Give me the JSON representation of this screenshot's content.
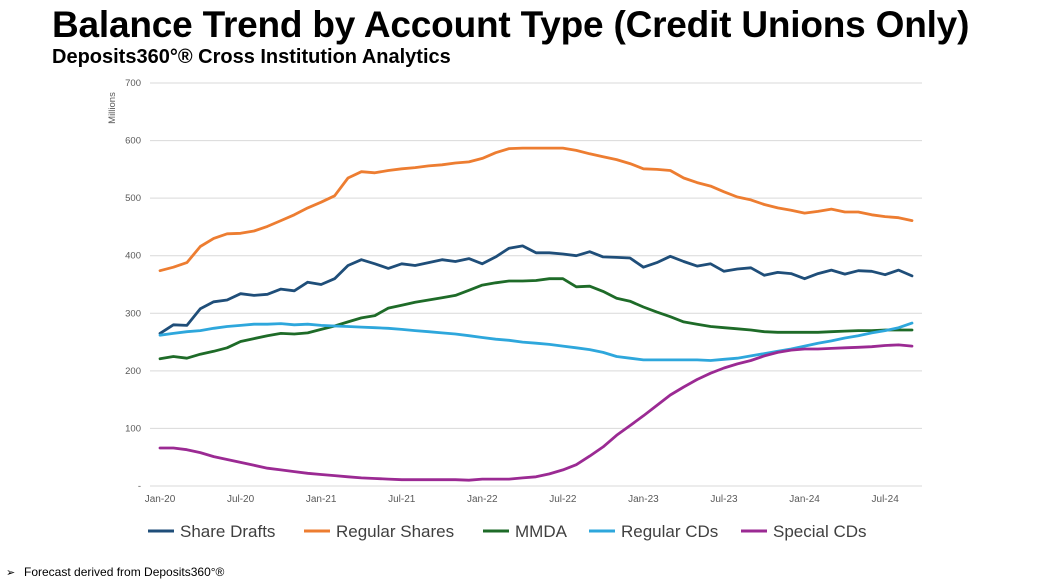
{
  "title": "Balance Trend by Account Type (Credit Unions Only)",
  "subtitle": "Deposits360°® Cross Institution Analytics",
  "footnote": "Forecast derived from Deposits360°®",
  "footnote_marker": "➢",
  "chart_data": {
    "type": "line",
    "ylabel": "Millions",
    "ylim": [
      0,
      700
    ],
    "yticks": [
      {
        "value": 0,
        "label": "-"
      },
      {
        "value": 100,
        "label": "100"
      },
      {
        "value": 200,
        "label": "200"
      },
      {
        "value": 300,
        "label": "300"
      },
      {
        "value": 400,
        "label": "400"
      },
      {
        "value": 500,
        "label": "500"
      },
      {
        "value": 600,
        "label": "600"
      },
      {
        "value": 700,
        "label": "700"
      }
    ],
    "xticks": [
      {
        "index": 0,
        "label": "Jan-20"
      },
      {
        "index": 6,
        "label": "Jul-20"
      },
      {
        "index": 12,
        "label": "Jan-21"
      },
      {
        "index": 18,
        "label": "Jul-21"
      },
      {
        "index": 24,
        "label": "Jan-22"
      },
      {
        "index": 30,
        "label": "Jul-22"
      },
      {
        "index": 36,
        "label": "Jan-23"
      },
      {
        "index": 42,
        "label": "Jul-23"
      },
      {
        "index": 48,
        "label": "Jan-24"
      },
      {
        "index": 54,
        "label": "Jul-24"
      }
    ],
    "x_count": 57,
    "grid": true,
    "legend_position": "bottom",
    "series": [
      {
        "name": "Share Drafts",
        "color": "#1f4e79",
        "values": [
          265,
          280,
          279,
          308,
          320,
          323,
          334,
          331,
          333,
          342,
          339,
          354,
          350,
          360,
          383,
          393,
          386,
          378,
          386,
          383,
          388,
          393,
          390,
          395,
          386,
          398,
          413,
          417,
          405,
          405,
          403,
          400,
          407,
          398,
          397,
          396,
          380,
          388,
          399,
          390,
          382,
          386,
          373,
          377,
          379,
          366,
          371,
          369,
          360,
          369,
          375,
          368,
          374,
          373,
          367,
          375,
          365
        ]
      },
      {
        "name": "Regular Shares",
        "color": "#ed7d31",
        "values": [
          374,
          380,
          388,
          416,
          430,
          438,
          439,
          443,
          451,
          461,
          471,
          483,
          493,
          504,
          535,
          546,
          544,
          548,
          551,
          553,
          556,
          558,
          561,
          563,
          569,
          579,
          586,
          587,
          587,
          587,
          587,
          583,
          577,
          572,
          567,
          560,
          551,
          550,
          548,
          535,
          527,
          521,
          511,
          502,
          497,
          489,
          483,
          479,
          474,
          477,
          481,
          476,
          476,
          471,
          468,
          466,
          461
        ]
      },
      {
        "name": "MMDA",
        "color": "#1e6b28",
        "values": [
          221,
          225,
          222,
          229,
          234,
          240,
          251,
          256,
          261,
          265,
          264,
          266,
          272,
          278,
          285,
          292,
          296,
          309,
          314,
          319,
          323,
          327,
          331,
          340,
          349,
          353,
          356,
          356,
          357,
          360,
          360,
          346,
          347,
          338,
          326,
          321,
          311,
          302,
          294,
          285,
          281,
          277,
          275,
          273,
          271,
          268,
          267,
          267,
          267,
          267,
          268,
          269,
          270,
          270,
          271,
          271,
          271
        ]
      },
      {
        "name": "Regular CDs",
        "color": "#2ea7dc",
        "values": [
          262,
          265,
          268,
          270,
          274,
          277,
          279,
          281,
          281,
          282,
          280,
          281,
          279,
          278,
          277,
          276,
          275,
          274,
          272,
          270,
          268,
          266,
          264,
          261,
          258,
          255,
          253,
          250,
          248,
          246,
          243,
          240,
          237,
          232,
          225,
          222,
          219,
          219,
          219,
          219,
          219,
          218,
          220,
          222,
          226,
          230,
          234,
          238,
          243,
          248,
          252,
          257,
          261,
          266,
          270,
          275,
          283
        ]
      },
      {
        "name": "Special CDs",
        "color": "#9b2a93",
        "values": [
          66,
          66,
          63,
          58,
          51,
          46,
          41,
          36,
          31,
          28,
          25,
          22,
          20,
          18,
          16,
          14,
          13,
          12,
          11,
          11,
          11,
          11,
          11,
          10,
          12,
          12,
          12,
          14,
          16,
          21,
          28,
          37,
          52,
          68,
          88,
          105,
          122,
          140,
          158,
          172,
          185,
          196,
          205,
          212,
          218,
          226,
          232,
          236,
          238,
          238,
          239,
          240,
          241,
          242,
          244,
          245,
          243
        ]
      }
    ]
  }
}
